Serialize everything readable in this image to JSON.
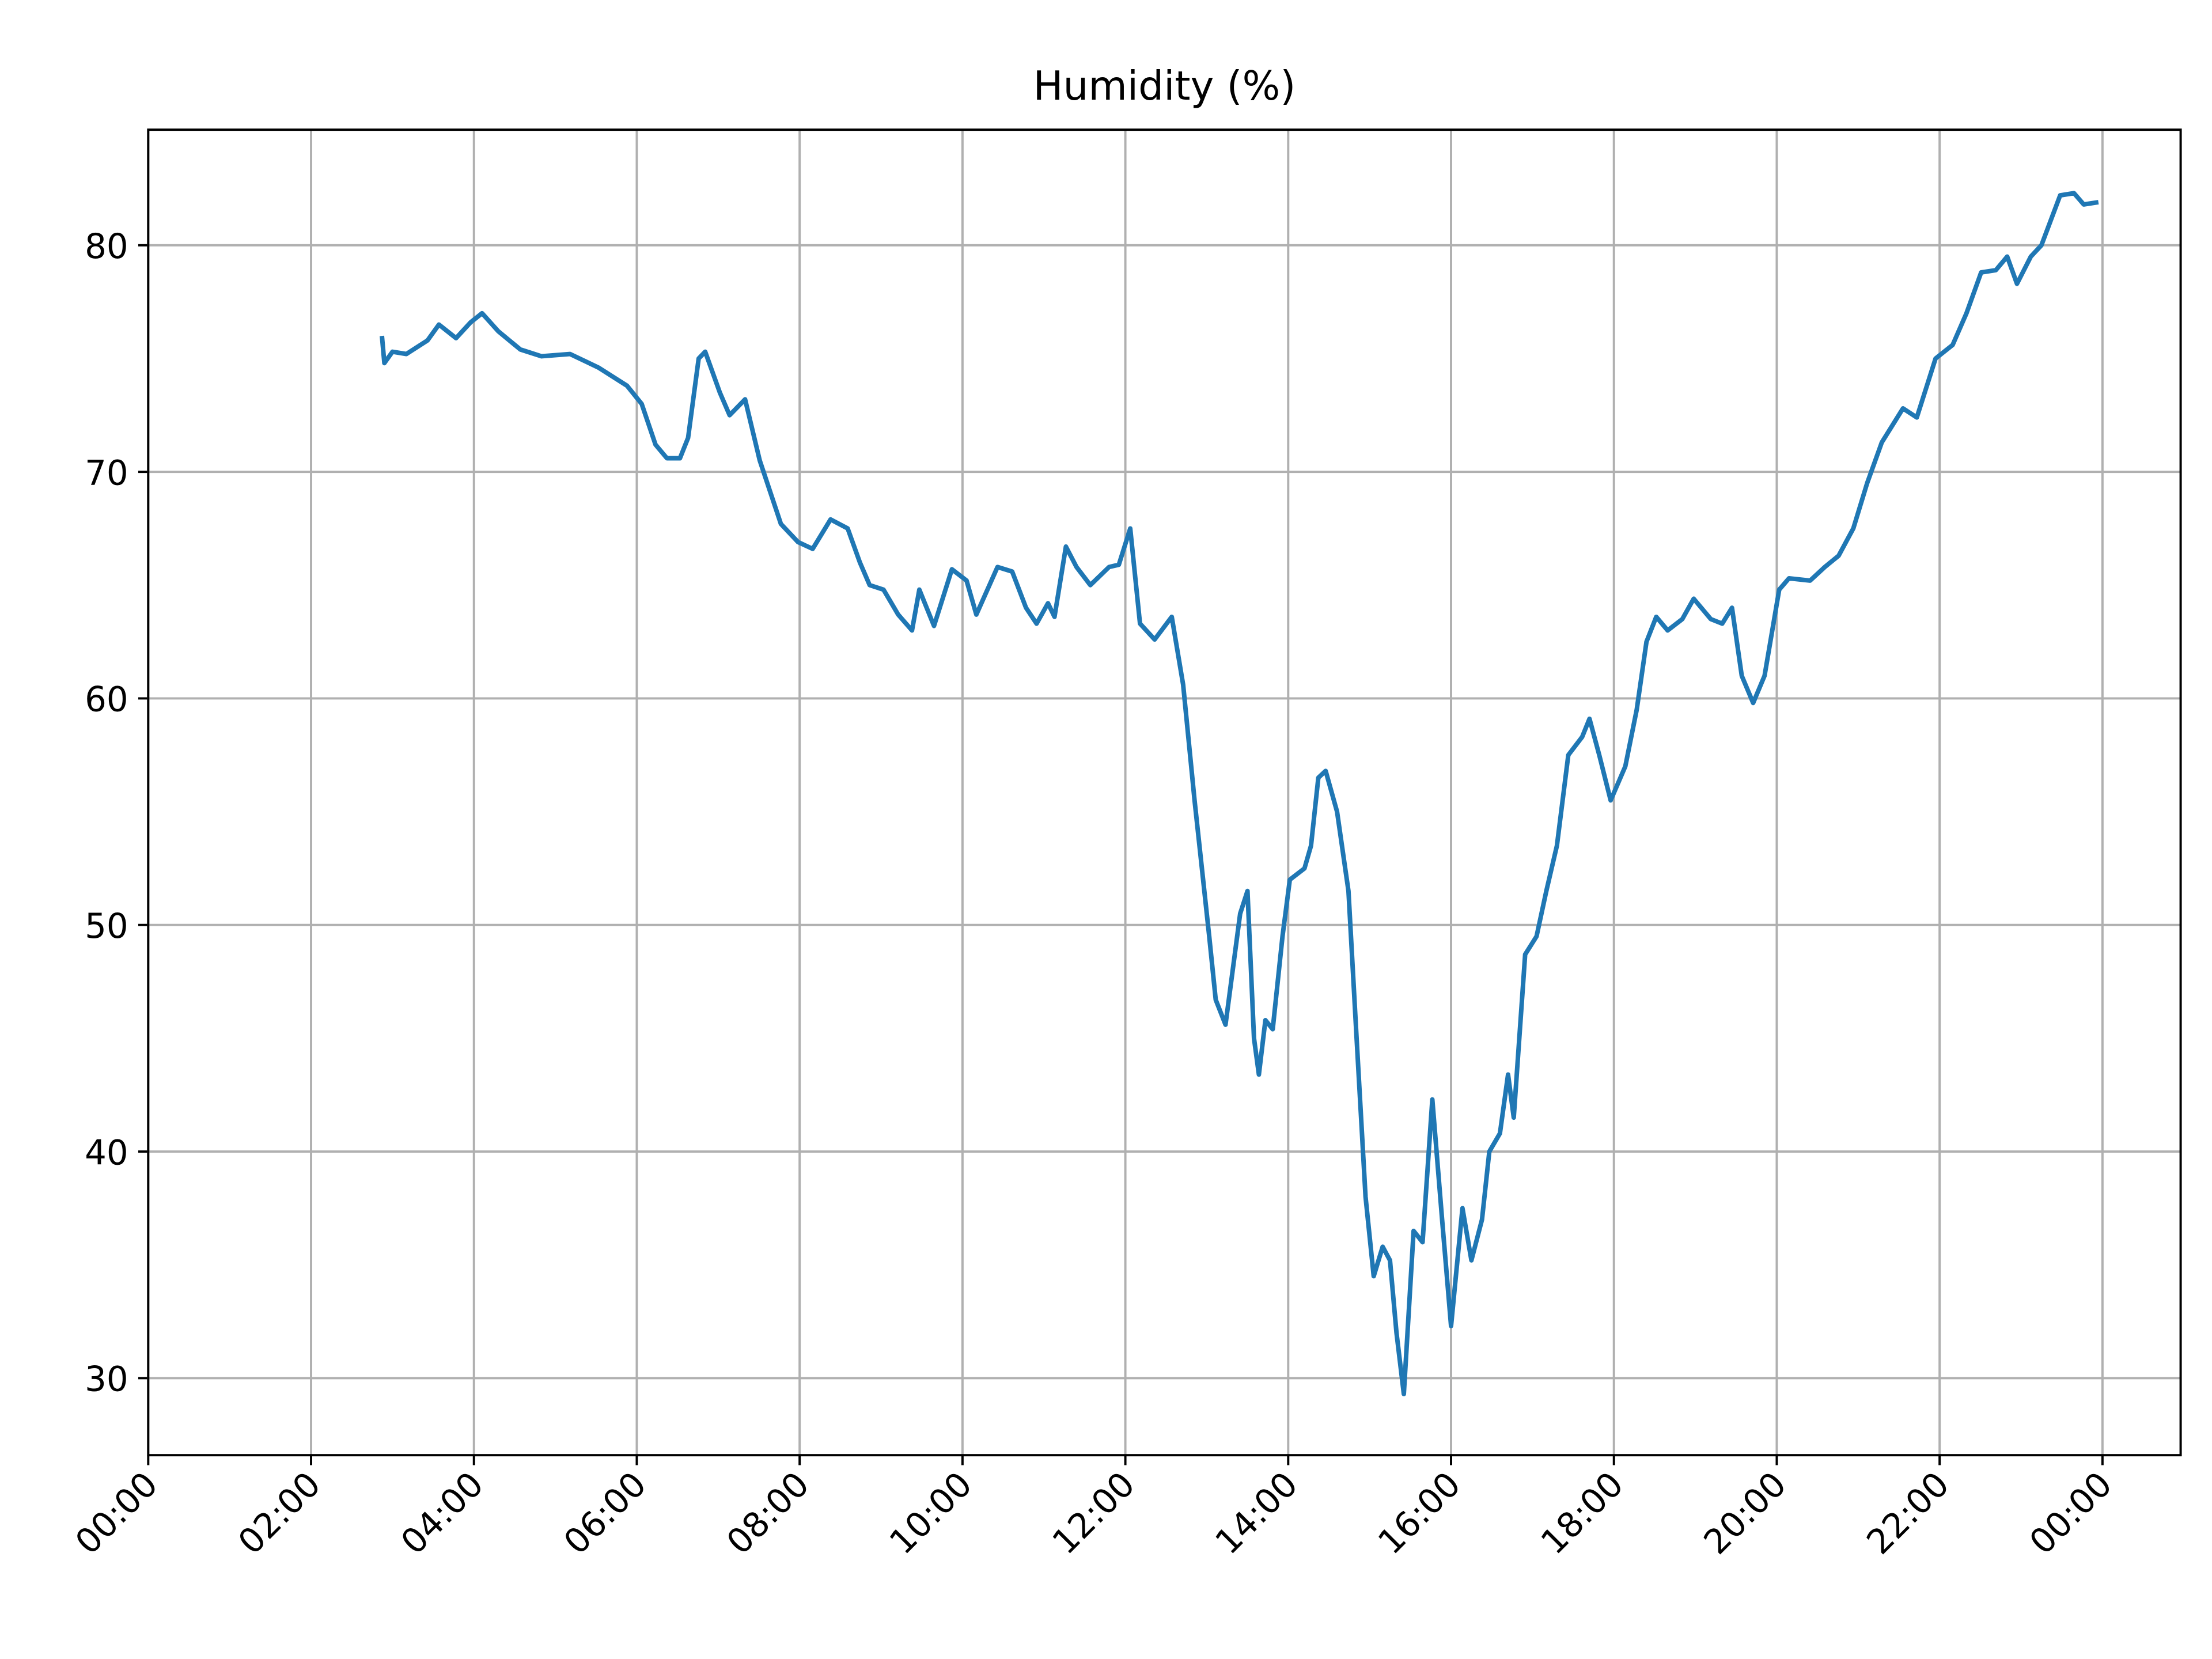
{
  "chart_data": {
    "type": "line",
    "title": "Humidity (%)",
    "x": [
      2.87,
      2.9,
      3.0,
      3.17,
      3.43,
      3.57,
      3.78,
      3.96,
      4.1,
      4.3,
      4.57,
      4.83,
      5.18,
      5.53,
      5.88,
      6.06,
      6.23,
      6.37,
      6.53,
      6.63,
      6.76,
      6.84,
      7.02,
      7.14,
      7.33,
      7.51,
      7.77,
      7.98,
      8.16,
      8.38,
      8.59,
      8.74,
      8.86,
      9.03,
      9.21,
      9.38,
      9.47,
      9.65,
      9.87,
      10.05,
      10.17,
      10.43,
      10.61,
      10.78,
      10.91,
      11.05,
      11.13,
      11.27,
      11.4,
      11.57,
      11.8,
      11.92,
      12.06,
      12.18,
      12.36,
      12.57,
      12.71,
      12.85,
      13.03,
      13.11,
      13.23,
      13.41,
      13.5,
      13.58,
      13.64,
      13.72,
      13.81,
      13.93,
      14.02,
      14.2,
      14.28,
      14.37,
      14.46,
      14.6,
      14.74,
      14.84,
      14.95,
      15.05,
      15.16,
      15.25,
      15.33,
      15.42,
      15.54,
      15.65,
      15.77,
      15.89,
      16.0,
      16.14,
      16.25,
      16.38,
      16.47,
      16.6,
      16.7,
      16.77,
      16.91,
      17.05,
      17.17,
      17.3,
      17.44,
      17.61,
      17.7,
      17.82,
      17.96,
      18.14,
      18.28,
      18.4,
      18.52,
      18.66,
      18.84,
      18.98,
      19.19,
      19.33,
      19.45,
      19.57,
      19.71,
      19.85,
      20.03,
      20.15,
      20.41,
      20.59,
      20.76,
      20.94,
      21.11,
      21.29,
      21.55,
      21.72,
      21.95,
      22.16,
      22.33,
      22.51,
      22.69,
      22.83,
      22.95,
      23.12,
      23.25,
      23.48,
      23.65,
      23.77,
      23.95
    ],
    "values": [
      76.0,
      74.8,
      75.3,
      75.2,
      75.8,
      76.5,
      75.9,
      76.6,
      77.0,
      76.2,
      75.4,
      75.1,
      75.2,
      74.6,
      73.8,
      73.0,
      71.2,
      70.6,
      70.6,
      71.5,
      75.0,
      75.3,
      73.5,
      72.5,
      73.2,
      70.5,
      67.7,
      66.9,
      66.6,
      67.9,
      67.5,
      66.0,
      65.0,
      64.8,
      63.7,
      63.0,
      64.8,
      63.2,
      65.7,
      65.2,
      63.7,
      65.8,
      65.6,
      64.0,
      63.3,
      64.2,
      63.6,
      66.7,
      65.8,
      65.0,
      65.8,
      65.9,
      67.5,
      63.3,
      62.6,
      63.6,
      60.6,
      55.5,
      49.5,
      46.7,
      45.6,
      50.5,
      51.5,
      45.0,
      43.4,
      45.8,
      45.4,
      49.5,
      52.0,
      52.5,
      53.5,
      56.5,
      56.8,
      55.0,
      51.5,
      45.0,
      38.0,
      34.5,
      35.8,
      35.2,
      32.0,
      29.3,
      36.5,
      36.0,
      42.3,
      37.0,
      32.3,
      37.5,
      35.2,
      37.0,
      40.0,
      40.8,
      43.4,
      41.5,
      48.7,
      49.5,
      51.5,
      53.5,
      57.5,
      58.3,
      59.1,
      57.5,
      55.5,
      57.0,
      59.5,
      62.5,
      63.6,
      63.0,
      63.5,
      64.4,
      63.5,
      63.3,
      64.0,
      61.0,
      59.8,
      61.0,
      64.8,
      65.3,
      65.2,
      65.8,
      66.3,
      67.5,
      69.5,
      71.3,
      72.8,
      72.4,
      75.0,
      75.6,
      77.0,
      78.8,
      78.9,
      79.5,
      78.3,
      79.5,
      80.0,
      82.2,
      82.3,
      81.8,
      81.9
    ],
    "color": "#1f77b4",
    "xlim": [
      0,
      24.96
    ],
    "ylim": [
      26.6,
      85.1
    ],
    "xticks": [
      {
        "value": 0,
        "label": "00:00"
      },
      {
        "value": 2,
        "label": "02:00"
      },
      {
        "value": 4,
        "label": "04:00"
      },
      {
        "value": 6,
        "label": "06:00"
      },
      {
        "value": 8,
        "label": "08:00"
      },
      {
        "value": 10,
        "label": "10:00"
      },
      {
        "value": 12,
        "label": "12:00"
      },
      {
        "value": 14,
        "label": "14:00"
      },
      {
        "value": 16,
        "label": "16:00"
      },
      {
        "value": 18,
        "label": "18:00"
      },
      {
        "value": 20,
        "label": "20:00"
      },
      {
        "value": 22,
        "label": "22:00"
      },
      {
        "value": 24,
        "label": "00:00"
      }
    ],
    "yticks": [
      30,
      40,
      50,
      60,
      70,
      80
    ],
    "grid": true
  }
}
